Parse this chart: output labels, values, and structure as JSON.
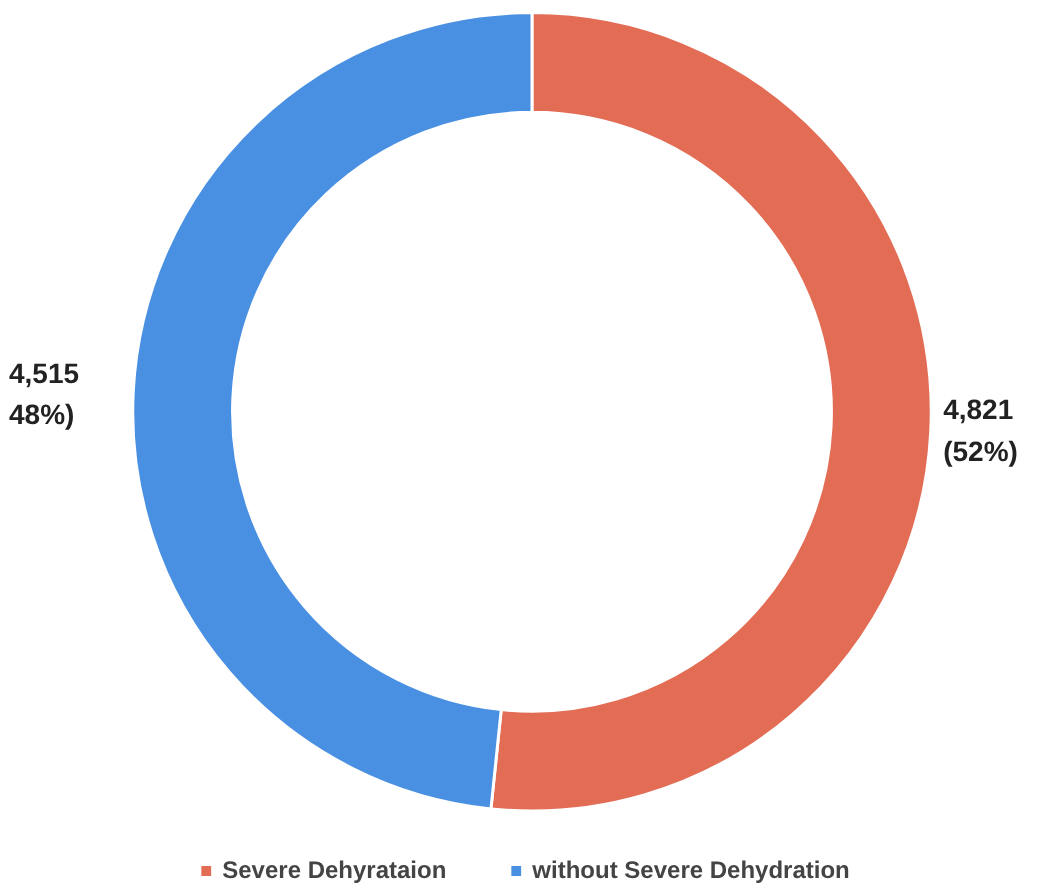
{
  "chart_data": {
    "type": "donut",
    "categories": [
      "Severe Dehyrataion",
      "without Severe Dehydration"
    ],
    "values": [
      4821,
      4515
    ],
    "colors": [
      "#e36c55",
      "#4a90e2"
    ],
    "value_labels": [
      "4,821\n(52%)",
      "4,515\n48%)"
    ],
    "legend": "bottom"
  }
}
